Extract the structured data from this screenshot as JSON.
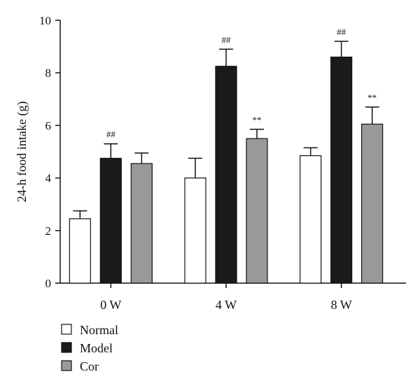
{
  "chart_data": {
    "type": "bar",
    "title": "",
    "xlabel": "",
    "ylabel": "24-h food intake (g)",
    "ylim": [
      0,
      10
    ],
    "yticks": [
      0,
      2,
      4,
      6,
      8,
      10
    ],
    "categories": [
      "0 W",
      "4 W",
      "8 W"
    ],
    "series": [
      {
        "name": "Normal",
        "color": "#ffffff",
        "values": [
          2.45,
          4.0,
          4.85
        ],
        "errors": [
          0.3,
          0.75,
          0.3
        ],
        "annotations": [
          "",
          "",
          ""
        ]
      },
      {
        "name": "Model",
        "color": "#1a1a1a",
        "values": [
          4.75,
          8.25,
          8.6
        ],
        "errors": [
          0.55,
          0.65,
          0.6
        ],
        "annotations": [
          "##",
          "##",
          "##"
        ]
      },
      {
        "name": "Cor",
        "color": "#999999",
        "values": [
          4.55,
          5.5,
          6.05
        ],
        "errors": [
          0.4,
          0.35,
          0.65
        ],
        "annotations": [
          "",
          "**",
          "**"
        ]
      }
    ],
    "legend_position": "bottom-left",
    "grid": false
  }
}
